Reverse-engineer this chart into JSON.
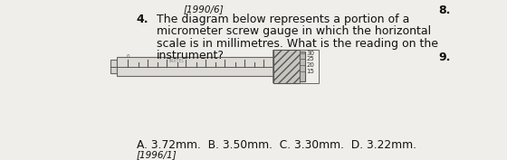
{
  "title_ref": "[1990/6]",
  "question_num": "4.",
  "q_line1": "The diagram below represents a portion of a",
  "q_line2": "micrometer screw gauge in which the horizontal",
  "q_line3": "scale is in millimetres. What is the reading on the",
  "q_line4": "instrument?",
  "answer_text": "A. 3.72mm.  B. 3.50mm.  C. 3.30mm.  D. 3.22mm.",
  "footer_ref": "[1996/1]",
  "side_num1": "8.",
  "side_num2": "9.",
  "thimble_scale": [
    "30",
    "25",
    "20",
    "15"
  ],
  "bg_color": "#f0eeea",
  "text_color": "#111111",
  "diagram_bg": "#ffffff",
  "sleeve_color": "#e0ddd8",
  "thimble_color": "#c8c5bf",
  "thimble_hatch_color": "#888880"
}
